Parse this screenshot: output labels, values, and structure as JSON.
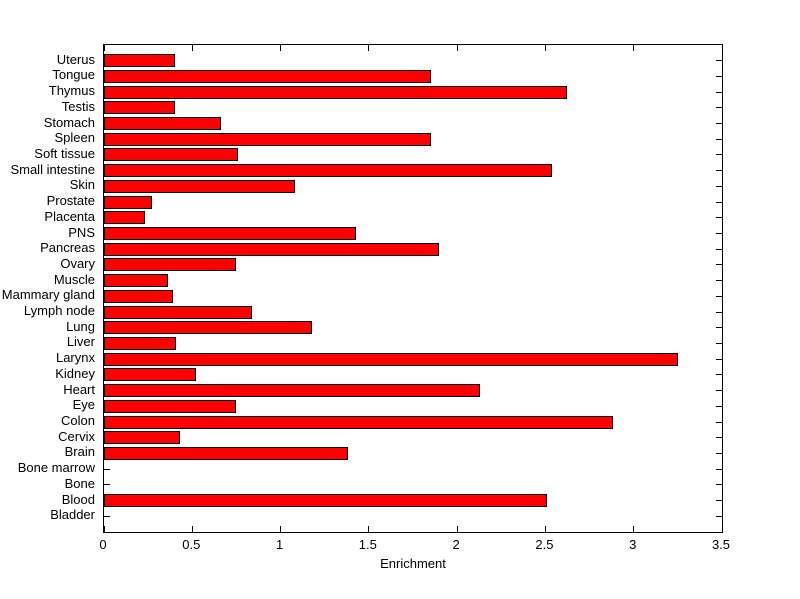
{
  "figure": {
    "background_color": "#ffffff",
    "axes_color": "#000000",
    "text_color": "#000000"
  },
  "chart_data": {
    "type": "bar",
    "orientation": "horizontal",
    "title": "",
    "xlabel": "Enrichment",
    "ylabel": "",
    "xlim": [
      0,
      3.5
    ],
    "x_ticks": [
      0,
      0.5,
      1,
      1.5,
      2,
      2.5,
      3,
      3.5
    ],
    "x_tick_labels": [
      "0",
      "0.5",
      "1",
      "1.5",
      "2",
      "2.5",
      "3",
      "3.5"
    ],
    "grid": false,
    "legend": "none",
    "bar_color": "#ff0000",
    "bar_edge_color": "#000000",
    "categories": [
      "Uterus",
      "Tongue",
      "Thymus",
      "Testis",
      "Stomach",
      "Spleen",
      "Soft tissue",
      "Small intestine",
      "Skin",
      "Prostate",
      "Placenta",
      "PNS",
      "Pancreas",
      "Ovary",
      "Muscle",
      "Mammary gland",
      "Lymph node",
      "Lung",
      "Liver",
      "Larynx",
      "Kidney",
      "Heart",
      "Eye",
      "Colon",
      "Cervix",
      "Brain",
      "Bone marrow",
      "Bone",
      "Blood",
      "Bladder"
    ],
    "values": [
      0.4,
      1.85,
      2.62,
      0.4,
      0.66,
      1.85,
      0.76,
      2.54,
      1.08,
      0.27,
      0.23,
      1.43,
      1.9,
      0.75,
      0.36,
      0.39,
      0.84,
      1.18,
      0.41,
      3.25,
      0.52,
      2.13,
      0.75,
      2.88,
      0.43,
      1.38,
      0,
      0,
      2.51,
      0
    ]
  }
}
